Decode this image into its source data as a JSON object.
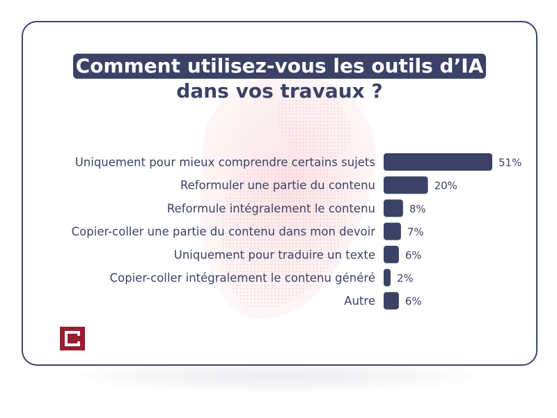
{
  "title": {
    "line1": "Comment utilisez-vous les outils d’IA",
    "line2": "dans vos travaux ?"
  },
  "chart_data": {
    "type": "bar",
    "orientation": "horizontal",
    "categories": [
      "Uniquement pour mieux comprendre certains sujets",
      "Reformuler une partie du contenu",
      "Reformule intégralement le contenu",
      "Copier-coller une partie du contenu dans mon devoir",
      "Uniquement pour traduire un texte",
      "Copier-coller intégralement le contenu généré",
      "Autre"
    ],
    "values": [
      51,
      20,
      8,
      7,
      6,
      2,
      6
    ],
    "labels": [
      "51%",
      "20%",
      "8%",
      "7%",
      "6%",
      "2%",
      "6%"
    ],
    "xlim": [
      0,
      51
    ],
    "grid": false,
    "legend": "none"
  },
  "colors": {
    "bar": "#3b4266",
    "text": "#3b4266",
    "logo": "#9b1b30"
  },
  "logo": {
    "icon": "bracket-logo-icon"
  }
}
